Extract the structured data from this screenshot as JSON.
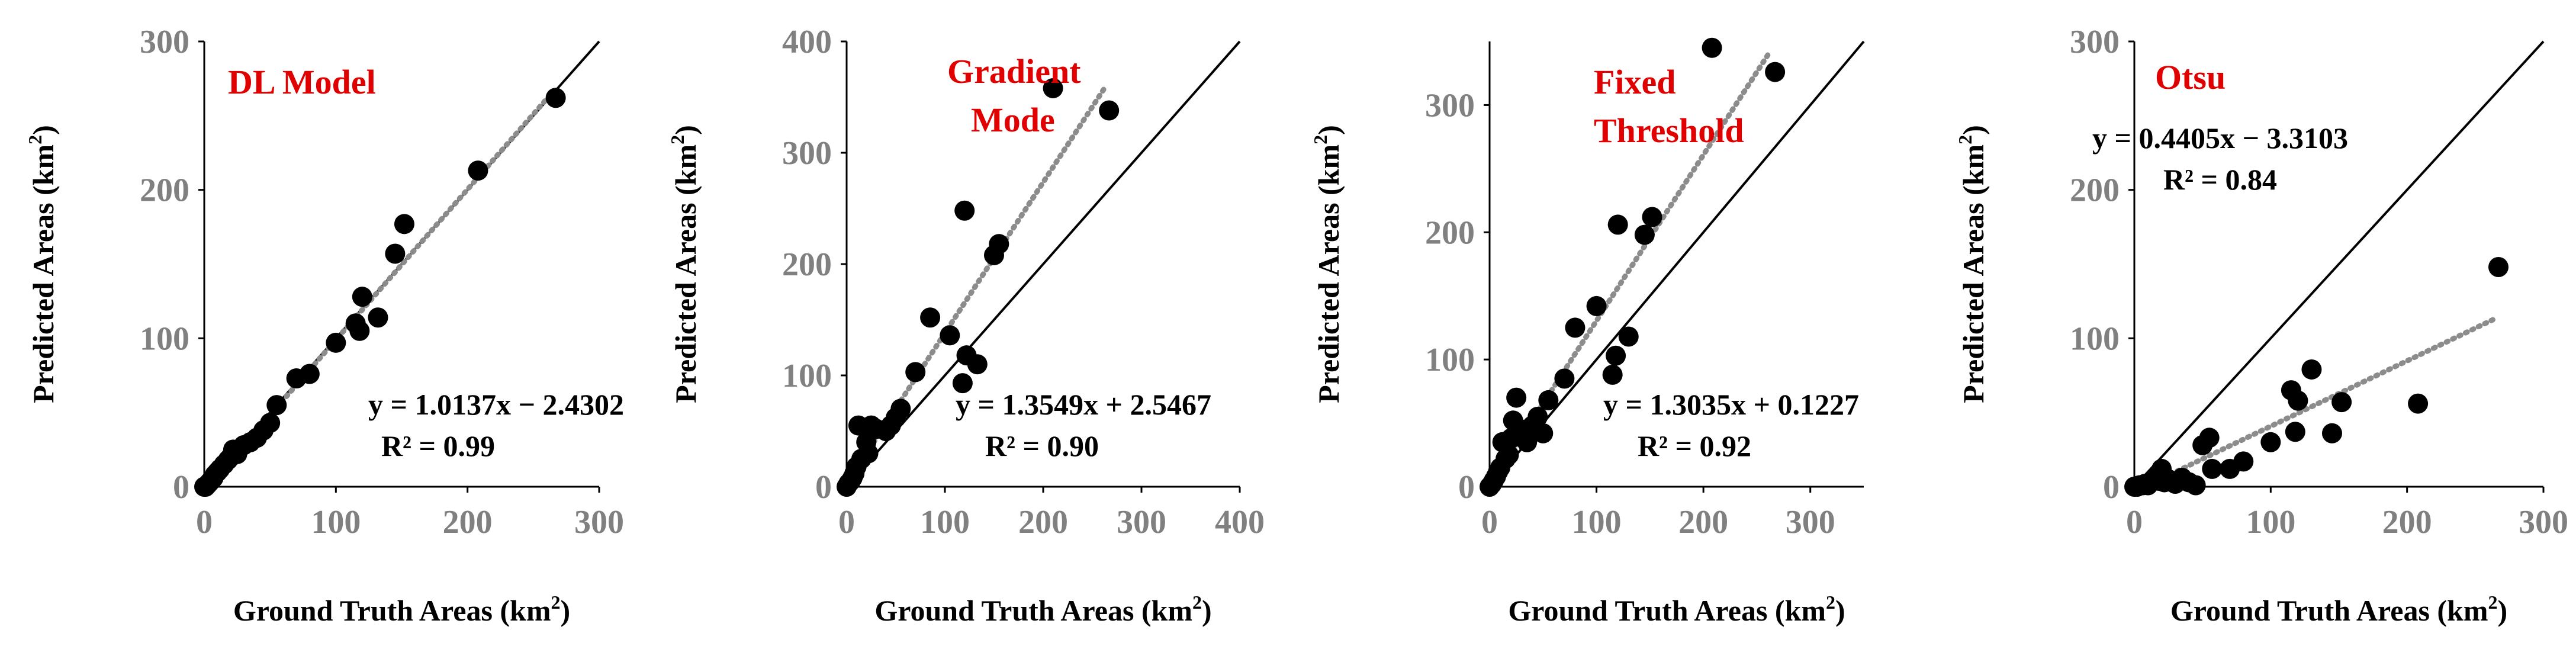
{
  "chart_data": [
    {
      "type": "scatter",
      "title": "DL Model",
      "xlabel_main": "Ground Truth Areas (km",
      "xlabel_sup": "2",
      "xlabel_end": ")",
      "ylabel_main": "Predicted Areas (km",
      "ylabel_sup": "2",
      "ylabel_end": ")",
      "xlim": [
        0,
        300
      ],
      "ylim": [
        0,
        300
      ],
      "xticks": [
        "0",
        "100",
        "200",
        "300"
      ],
      "yticks": [
        "0",
        "100",
        "200",
        "300"
      ],
      "equation": "y = 1.0137x − 2.4302",
      "r2": "R² = 0.99",
      "trend": {
        "slope": 1.0137,
        "intercept": -2.4302,
        "x_start": 2,
        "x_end": 265
      },
      "identity_line": [
        0,
        300
      ],
      "series": [
        {
          "x": [
            0,
            1,
            2,
            3,
            4,
            5,
            6,
            7,
            8,
            10,
            12,
            15,
            18,
            20,
            22,
            25,
            30,
            35,
            40,
            45,
            50,
            55,
            70,
            80,
            100,
            115,
            118,
            120,
            132,
            145,
            152,
            208,
            267
          ],
          "y": [
            0,
            0,
            1,
            2,
            3,
            4,
            5,
            6,
            8,
            10,
            12,
            15,
            18,
            20,
            25,
            22,
            28,
            30,
            33,
            38,
            43,
            55,
            73,
            76,
            97,
            110,
            105,
            128,
            114,
            157,
            177,
            213,
            262
          ]
        }
      ]
    },
    {
      "type": "scatter",
      "title_lines": [
        "Gradient",
        "Mode"
      ],
      "xlabel_main": "Ground Truth Areas (km",
      "xlabel_sup": "2",
      "xlabel_end": ")",
      "ylabel_main": "Predicted Areas (km",
      "ylabel_sup": "2",
      "ylabel_end": ")",
      "xlim": [
        0,
        400
      ],
      "ylim": [
        0,
        400
      ],
      "xticks": [
        "0",
        "100",
        "200",
        "300",
        "400"
      ],
      "yticks": [
        "0",
        "100",
        "200",
        "300",
        "400"
      ],
      "equation": "y = 1.3549x + 2.5467",
      "r2": "R² = 0.90",
      "trend": {
        "slope": 1.3549,
        "intercept": 2.5467,
        "x_start": 0,
        "x_end": 262
      },
      "identity_line": [
        0,
        400
      ],
      "series": [
        {
          "x": [
            0,
            2,
            4,
            6,
            8,
            10,
            12,
            15,
            20,
            22,
            25,
            30,
            40,
            45,
            50,
            55,
            70,
            85,
            105,
            118,
            120,
            122,
            133,
            150,
            155,
            210,
            267
          ],
          "y": [
            0,
            3,
            5,
            8,
            12,
            18,
            55,
            25,
            40,
            30,
            55,
            52,
            50,
            55,
            62,
            70,
            103,
            152,
            136,
            93,
            248,
            118,
            110,
            208,
            218,
            358,
            338
          ]
        }
      ]
    },
    {
      "type": "scatter",
      "title_lines": [
        "Fixed",
        "Threshold"
      ],
      "xlabel_main": "Ground Truth Areas (km",
      "xlabel_sup": "2",
      "xlabel_end": ")",
      "ylabel_main": "Predicted Areas (km",
      "ylabel_sup": "2",
      "ylabel_end": ")",
      "xlim": [
        0,
        350
      ],
      "ylim": [
        0,
        350
      ],
      "xticks": [
        "0",
        "100",
        "200",
        "300"
      ],
      "yticks": [
        "0",
        "100",
        "200",
        "300"
      ],
      "equation": "y = 1.3035x + 0.1227",
      "r2": "R² = 0.92",
      "trend": {
        "slope": 1.3035,
        "intercept": 0.1227,
        "x_start": 0,
        "x_end": 262
      },
      "identity_line": [
        0,
        350
      ],
      "series": [
        {
          "x": [
            0,
            2,
            4,
            6,
            8,
            10,
            12,
            15,
            18,
            20,
            22,
            25,
            30,
            35,
            40,
            45,
            50,
            55,
            70,
            80,
            100,
            115,
            118,
            120,
            130,
            145,
            152,
            208,
            267
          ],
          "y": [
            0,
            2,
            5,
            8,
            12,
            15,
            35,
            22,
            25,
            38,
            52,
            70,
            45,
            35,
            48,
            55,
            42,
            68,
            85,
            125,
            142,
            88,
            103,
            206,
            118,
            198,
            212,
            345,
            326
          ]
        }
      ]
    },
    {
      "type": "scatter",
      "title": "Otsu",
      "xlabel_main": "Ground Truth Areas (km",
      "xlabel_sup": "2",
      "xlabel_end": ")",
      "ylabel_main": "Predicted Areas (km",
      "ylabel_sup": "2",
      "ylabel_end": ")",
      "xlim": [
        0,
        300
      ],
      "ylim": [
        0,
        300
      ],
      "xticks": [
        "0",
        "100",
        "200",
        "300"
      ],
      "yticks": [
        "0",
        "100",
        "200",
        "300"
      ],
      "equation": "y = 0.4405x − 3.3103",
      "r2": "R² = 0.84",
      "trend": {
        "slope": 0.4405,
        "intercept": -3.3103,
        "x_start": 8,
        "x_end": 265
      },
      "identity_line": [
        0,
        300
      ],
      "series": [
        {
          "x": [
            0,
            2,
            4,
            6,
            8,
            10,
            12,
            15,
            18,
            20,
            22,
            25,
            30,
            35,
            40,
            45,
            50,
            55,
            57,
            70,
            80,
            100,
            115,
            118,
            120,
            130,
            145,
            152,
            208,
            267
          ],
          "y": [
            0,
            0,
            1,
            1,
            2,
            1,
            3,
            5,
            4,
            12,
            3,
            5,
            2,
            6,
            3,
            1,
            28,
            33,
            12,
            12,
            17,
            30,
            65,
            37,
            58,
            79,
            36,
            57,
            56,
            148
          ]
        }
      ]
    }
  ]
}
